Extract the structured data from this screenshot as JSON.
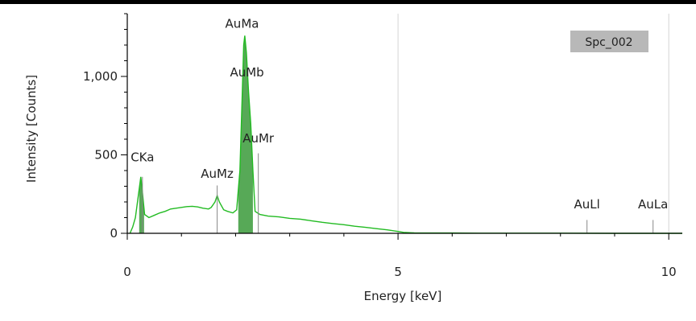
{
  "chart_data": {
    "type": "area",
    "xlabel": "Energy [keV]",
    "ylabel": "Intensity [Counts]",
    "xlim": [
      0,
      10.25
    ],
    "ylim": [
      0,
      1400
    ],
    "x_ticks": [
      0,
      5,
      10
    ],
    "x_tick_labels": [
      "0",
      "5",
      "10"
    ],
    "y_ticks": [
      0,
      500,
      1000
    ],
    "y_tick_labels": [
      "0",
      "500",
      "1,000"
    ],
    "grid": "vertical",
    "legend": {
      "label": "Spc_002",
      "placement": "top-right"
    },
    "line_color": "#22bb22",
    "fill_color": "#3a9a3a",
    "series": [
      {
        "name": "Spc_002",
        "points": [
          [
            0.05,
            0
          ],
          [
            0.1,
            40
          ],
          [
            0.15,
            100
          ],
          [
            0.2,
            230
          ],
          [
            0.25,
            360
          ],
          [
            0.28,
            260
          ],
          [
            0.32,
            120
          ],
          [
            0.4,
            100
          ],
          [
            0.5,
            115
          ],
          [
            0.6,
            130
          ],
          [
            0.7,
            140
          ],
          [
            0.8,
            155
          ],
          [
            0.9,
            160
          ],
          [
            1.0,
            165
          ],
          [
            1.1,
            170
          ],
          [
            1.2,
            172
          ],
          [
            1.3,
            168
          ],
          [
            1.4,
            160
          ],
          [
            1.5,
            155
          ],
          [
            1.55,
            165
          ],
          [
            1.62,
            200
          ],
          [
            1.66,
            240
          ],
          [
            1.7,
            200
          ],
          [
            1.78,
            150
          ],
          [
            1.85,
            140
          ],
          [
            1.95,
            130
          ],
          [
            2.02,
            150
          ],
          [
            2.08,
            400
          ],
          [
            2.12,
            850
          ],
          [
            2.15,
            1200
          ],
          [
            2.17,
            1260
          ],
          [
            2.2,
            1150
          ],
          [
            2.24,
            900
          ],
          [
            2.28,
            700
          ],
          [
            2.32,
            400
          ],
          [
            2.36,
            140
          ],
          [
            2.45,
            120
          ],
          [
            2.6,
            110
          ],
          [
            2.8,
            105
          ],
          [
            3.0,
            95
          ],
          [
            3.2,
            90
          ],
          [
            3.4,
            80
          ],
          [
            3.6,
            70
          ],
          [
            3.8,
            62
          ],
          [
            4.0,
            55
          ],
          [
            4.2,
            45
          ],
          [
            4.4,
            38
          ],
          [
            4.6,
            30
          ],
          [
            4.8,
            22
          ],
          [
            5.0,
            12
          ],
          [
            5.1,
            6
          ],
          [
            5.3,
            3
          ],
          [
            5.6,
            2
          ],
          [
            6.0,
            2
          ],
          [
            6.5,
            1
          ],
          [
            7.0,
            1
          ],
          [
            8.0,
            1
          ],
          [
            9.0,
            0
          ],
          [
            10.0,
            0
          ],
          [
            10.25,
            0
          ]
        ]
      }
    ],
    "shaded_regions": [
      {
        "from": 0.22,
        "to": 0.31,
        "peak_label": "CKa"
      },
      {
        "from": 2.05,
        "to": 2.32,
        "peak_label": "AuMa"
      }
    ],
    "peak_labels": [
      {
        "text": "AuMa",
        "x": 2.12,
        "y": 1310
      },
      {
        "text": "AuMb",
        "x": 2.21,
        "y": 1000
      },
      {
        "text": "AuMr",
        "x": 2.42,
        "y": 580
      },
      {
        "text": "CKa",
        "x": 0.28,
        "y": 460
      },
      {
        "text": "AuMz",
        "x": 1.66,
        "y": 355
      },
      {
        "text": "AuLl",
        "x": 8.49,
        "y": 160
      },
      {
        "text": "AuLa",
        "x": 9.71,
        "y": 160
      }
    ],
    "marker_lines": [
      {
        "x": 0.28,
        "y_top": 360
      },
      {
        "x": 1.66,
        "y_top": 305
      },
      {
        "x": 2.42,
        "y_top": 510
      },
      {
        "x": 8.49,
        "y_top": 85
      },
      {
        "x": 9.71,
        "y_top": 85
      }
    ]
  }
}
